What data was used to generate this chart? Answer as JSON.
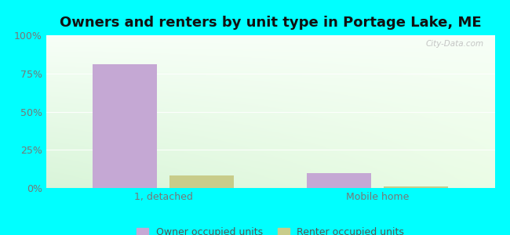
{
  "title": "Owners and renters by unit type in Portage Lake, ME",
  "categories": [
    "1, detached",
    "Mobile home"
  ],
  "owner_values": [
    81,
    10
  ],
  "renter_values": [
    8,
    1
  ],
  "owner_color": "#c5a8d4",
  "renter_color": "#c8cc8a",
  "ylim": [
    0,
    100
  ],
  "yticks": [
    0,
    25,
    50,
    75,
    100
  ],
  "ytick_labels": [
    "0%",
    "25%",
    "50%",
    "75%",
    "100%"
  ],
  "outer_bg": "#00ffff",
  "bar_width": 0.3,
  "legend_owner": "Owner occupied units",
  "legend_renter": "Renter occupied units",
  "title_fontsize": 13,
  "tick_fontsize": 9,
  "legend_fontsize": 9,
  "watermark": "City-Data.com",
  "grid_color": "#ddeedd",
  "tick_color": "#777777",
  "x_positions": [
    0,
    1
  ],
  "xlim": [
    -0.55,
    1.55
  ]
}
